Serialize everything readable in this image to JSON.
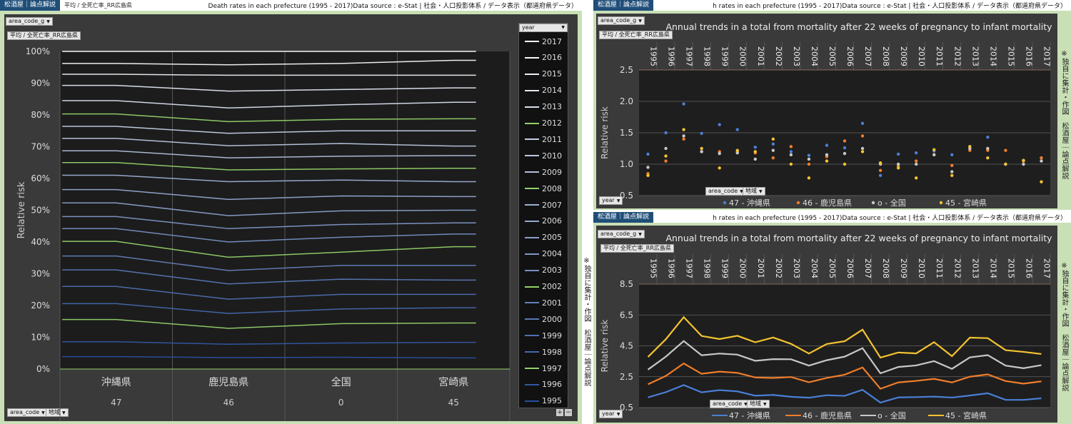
{
  "header": {
    "brand": "松酒屋｜論点解説",
    "crumb_left": "平均 / 全死亡率_RR広島県",
    "source_left": "Death rates in each prefecture (1995 - 2017)Data source : e-Stat | 社会・人口投影体系 / データ表示（都道府県データ）",
    "source_right": "h rates in each prefecture (1995 - 2017)Data source : e-Stat | 社会・人口投影体系 / データ表示（都道府県データ）"
  },
  "filters": {
    "area_code_g": "area_code_g",
    "measure": "平均 / 全死亡率_RR広島県",
    "year": "year",
    "area_code": "area_code",
    "region": "地域"
  },
  "side_note": "※独自に集計・作図　松酒屋｜論点解説",
  "colors": {
    "okinawa": "#4a7fd6",
    "kagoshima": "#f07d2a",
    "national": "#c8c8c8",
    "miyazaki": "#f4c430",
    "green": "#93d16a",
    "panel_bg": "#2b2b2b"
  },
  "chart_data": [
    {
      "type": "area",
      "subtype": "100% stacked line",
      "ylabel": "Relative risk",
      "yticks": [
        "0%",
        "10%",
        "20%",
        "30%",
        "40%",
        "50%",
        "60%",
        "70%",
        "80%",
        "90%",
        "100%"
      ],
      "categories": [
        "沖縄県",
        "鹿児島県",
        "全国",
        "宮崎県"
      ],
      "category_codes": [
        "47",
        "46",
        "0",
        "45"
      ],
      "legend_title": "year",
      "legend_position": "right",
      "series": [
        {
          "name": "1995",
          "values": [
            3.9,
            3.6,
            3.7,
            3.5
          ]
        },
        {
          "name": "1996",
          "values": [
            8.6,
            7.8,
            8.2,
            8.4
          ]
        },
        {
          "name": "1997",
          "values": [
            15.6,
            12.8,
            14.3,
            14.5
          ]
        },
        {
          "name": "1998",
          "values": [
            20.6,
            17.5,
            18.9,
            19.3
          ]
        },
        {
          "name": "1999",
          "values": [
            26.0,
            22.0,
            23.5,
            23.5
          ]
        },
        {
          "name": "2000",
          "values": [
            31.2,
            26.8,
            28.3,
            28.0
          ]
        },
        {
          "name": "2001",
          "values": [
            35.6,
            31.0,
            32.6,
            32.6
          ]
        },
        {
          "name": "2002",
          "values": [
            40.2,
            35.2,
            36.8,
            38.5
          ]
        },
        {
          "name": "2003",
          "values": [
            44.2,
            40.0,
            41.5,
            42.5
          ]
        },
        {
          "name": "2004",
          "values": [
            48.0,
            44.2,
            45.5,
            46.0
          ]
        },
        {
          "name": "2005",
          "values": [
            52.3,
            48.3,
            49.8,
            50.0
          ]
        },
        {
          "name": "2006",
          "values": [
            56.5,
            53.4,
            54.5,
            54.3
          ]
        },
        {
          "name": "2007",
          "values": [
            61.0,
            59.0,
            59.5,
            59.0
          ]
        },
        {
          "name": "2008",
          "values": [
            65.0,
            62.7,
            63.0,
            63.2
          ]
        },
        {
          "name": "2009",
          "values": [
            68.7,
            66.5,
            67.0,
            67.2
          ]
        },
        {
          "name": "2010",
          "values": [
            72.6,
            70.3,
            71.0,
            70.2
          ]
        },
        {
          "name": "2011",
          "values": [
            76.4,
            74.2,
            75.0,
            75.0
          ]
        },
        {
          "name": "2012",
          "values": [
            80.3,
            77.9,
            78.6,
            78.8
          ]
        },
        {
          "name": "2013",
          "values": [
            84.5,
            82.2,
            83.2,
            84.0
          ]
        },
        {
          "name": "2014",
          "values": [
            89.3,
            87.5,
            88.0,
            88.5
          ]
        },
        {
          "name": "2015",
          "values": [
            92.8,
            92.5,
            92.5,
            92.5
          ]
        },
        {
          "name": "2016",
          "values": [
            96.2,
            95.8,
            96.2,
            97.2
          ]
        },
        {
          "name": "2017",
          "values": [
            100,
            100,
            100,
            100
          ]
        }
      ]
    },
    {
      "type": "scatter",
      "title": "Annual trends in a total from mortality after 22 weeks of pregnancy to infant mortality",
      "ylabel": "Relative risk",
      "ylim": [
        0.5,
        2.5
      ],
      "yticks": [
        "0.5",
        "1.0",
        "1.5",
        "2.0",
        "2.5"
      ],
      "x": [
        "1995",
        "1996",
        "1997",
        "1998",
        "1999",
        "2000",
        "2001",
        "2002",
        "2003",
        "2004",
        "2005",
        "2006",
        "2007",
        "2008",
        "2009",
        "2010",
        "2011",
        "2012",
        "2013",
        "2014",
        "2015",
        "2016",
        "2017"
      ],
      "legend_position": "bottom",
      "series": [
        {
          "name": "47 - 沖縄県",
          "color": "#4a7fd6",
          "values": [
            1.16,
            1.5,
            1.96,
            1.49,
            1.63,
            1.55,
            1.27,
            1.32,
            1.2,
            1.14,
            1.3,
            1.26,
            1.65,
            0.82,
            1.16,
            1.18,
            1.21,
            1.15,
            1.28,
            1.43,
            1.0,
            1.0,
            1.1
          ]
        },
        {
          "name": "46 - 鹿児島県",
          "color": "#f07d2a",
          "values": [
            0.85,
            1.05,
            1.4,
            1.2,
            1.2,
            1.2,
            1.18,
            1.1,
            1.28,
            1.0,
            1.12,
            1.37,
            1.45,
            0.9,
            0.97,
            1.05,
            1.15,
            0.98,
            1.22,
            1.22,
            1.22,
            1.05,
            1.1
          ]
        },
        {
          "name": "o - 全国",
          "color": "#c8c8c8",
          "values": [
            0.95,
            1.25,
            1.45,
            1.2,
            1.17,
            1.18,
            1.08,
            1.22,
            1.15,
            1.08,
            1.15,
            1.17,
            1.25,
            1.0,
            1.0,
            1.0,
            1.15,
            0.88,
            1.25,
            1.25,
            1.0,
            1.0,
            1.05
          ]
        },
        {
          "name": "45 - 宮崎県",
          "color": "#f4c430",
          "values": [
            0.82,
            1.13,
            1.55,
            1.25,
            0.94,
            1.22,
            1.2,
            1.4,
            1.0,
            0.78,
            1.05,
            1.0,
            1.2,
            1.02,
            0.94,
            0.78,
            1.23,
            0.82,
            1.28,
            1.1,
            1.0,
            1.06,
            0.72
          ]
        }
      ]
    },
    {
      "type": "line",
      "subtype": "stacked line",
      "title": "Annual trends in a total from mortality after 22 weeks of pregnancy to infant mortality",
      "ylabel": "Relative risk",
      "ylim": [
        0.5,
        8.5
      ],
      "yticks": [
        "0.5",
        "2.5",
        "4.5",
        "6.5",
        "8.5"
      ],
      "x": [
        "1995",
        "1996",
        "1997",
        "1998",
        "1999",
        "2000",
        "2001",
        "2002",
        "2003",
        "2004",
        "2005",
        "2006",
        "2007",
        "2008",
        "2009",
        "2010",
        "2011",
        "2012",
        "2013",
        "2014",
        "2015",
        "2016",
        "2017"
      ],
      "legend_position": "bottom",
      "series": [
        {
          "name": "47 - 沖縄県",
          "color": "#4a7fd6",
          "values": [
            1.16,
            1.5,
            1.96,
            1.49,
            1.63,
            1.55,
            1.27,
            1.32,
            1.2,
            1.14,
            1.3,
            1.26,
            1.65,
            0.82,
            1.16,
            1.18,
            1.21,
            1.15,
            1.28,
            1.43,
            1.0,
            1.0,
            1.1
          ]
        },
        {
          "name": "46 - 鹿児島県",
          "color": "#f07d2a",
          "values": [
            2.01,
            2.55,
            3.36,
            2.69,
            2.83,
            2.75,
            2.45,
            2.42,
            2.48,
            2.14,
            2.42,
            2.63,
            3.1,
            1.72,
            2.13,
            2.23,
            2.36,
            2.13,
            2.5,
            2.65,
            2.22,
            2.05,
            2.2
          ]
        },
        {
          "name": "o - 全国",
          "color": "#c8c8c8",
          "values": [
            2.96,
            3.8,
            4.81,
            3.89,
            4.0,
            3.93,
            3.53,
            3.64,
            3.63,
            3.22,
            3.57,
            3.8,
            4.35,
            2.72,
            3.13,
            3.23,
            3.51,
            3.01,
            3.75,
            3.9,
            3.22,
            3.05,
            3.25
          ]
        },
        {
          "name": "45 - 宮崎県",
          "color": "#f4c430",
          "values": [
            3.78,
            4.93,
            6.36,
            5.14,
            4.94,
            5.15,
            4.73,
            5.04,
            4.63,
            4.0,
            4.62,
            4.8,
            5.55,
            3.74,
            4.07,
            4.01,
            4.74,
            3.83,
            5.03,
            5.0,
            4.22,
            4.11,
            3.97
          ]
        }
      ]
    }
  ]
}
